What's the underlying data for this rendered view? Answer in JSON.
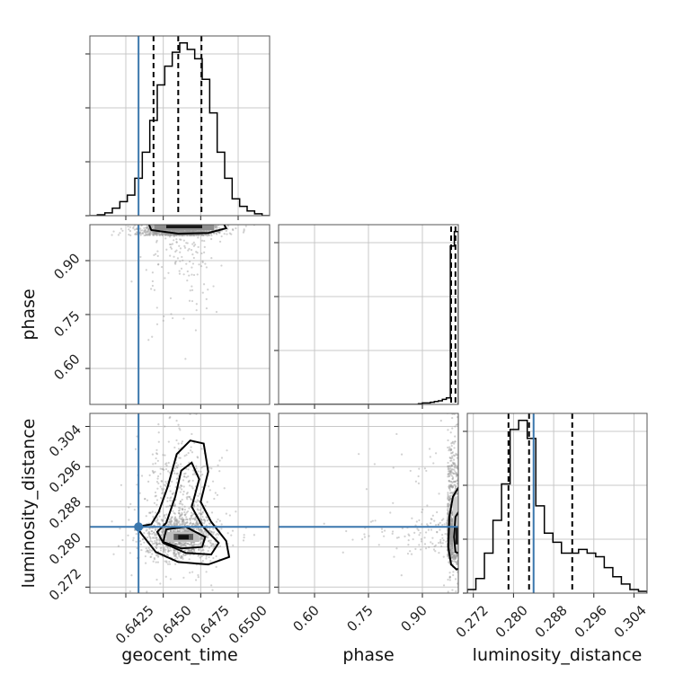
{
  "chart_data": {
    "type": "corner",
    "parameters": [
      "geocent_time",
      "phase",
      "luminosity_distance"
    ],
    "truth": {
      "geocent_time": 0.64335,
      "phase": null,
      "luminosity_distance": 0.284
    },
    "ranges": {
      "geocent_time": [
        0.6401,
        0.6521
      ],
      "phase": [
        0.5,
        1.0
      ],
      "luminosity_distance": [
        0.2708,
        0.3066
      ]
    },
    "ticks": {
      "geocent_time": [
        "0.6425",
        "0.6450",
        "0.6475",
        "0.6500"
      ],
      "phase": [
        "0.60",
        "0.75",
        "0.90"
      ],
      "luminosity_distance": [
        "0.272",
        "0.280",
        "0.288",
        "0.296",
        "0.304"
      ]
    },
    "quantiles": {
      "geocent_time": [
        0.64435,
        0.646,
        0.64755
      ],
      "phase": [
        0.98,
        0.992
      ],
      "luminosity_distance": [
        0.279,
        0.2831,
        0.2917
      ]
    },
    "histograms": {
      "geocent_time": {
        "range": [
          0.6401,
          0.6521
        ],
        "counts": [
          0,
          1,
          3,
          8,
          15,
          22,
          40,
          68,
          102,
          140,
          160,
          175,
          185,
          178,
          168,
          146,
          110,
          68,
          40,
          18,
          10,
          5,
          2,
          0
        ]
      },
      "phase": {
        "range": [
          0.5,
          1.0
        ],
        "counts": [
          0,
          0,
          0,
          0,
          0,
          0,
          0,
          0,
          0,
          0,
          0,
          0,
          0,
          0,
          0,
          0,
          0,
          0,
          0,
          0,
          0,
          0,
          0,
          0,
          0,
          0,
          0,
          0,
          0,
          0,
          0,
          0,
          0,
          0,
          0,
          1,
          2,
          2,
          3,
          4,
          5,
          7,
          9,
          220,
          240
        ]
      },
      "luminosity_distance": {
        "range": [
          0.2708,
          0.3066
        ],
        "counts": [
          2,
          8,
          22,
          40,
          60,
          90,
          95,
          85,
          48,
          33,
          28,
          22,
          22,
          24,
          22,
          20,
          14,
          9,
          5,
          2,
          1
        ]
      }
    },
    "title": "",
    "grid": true
  }
}
